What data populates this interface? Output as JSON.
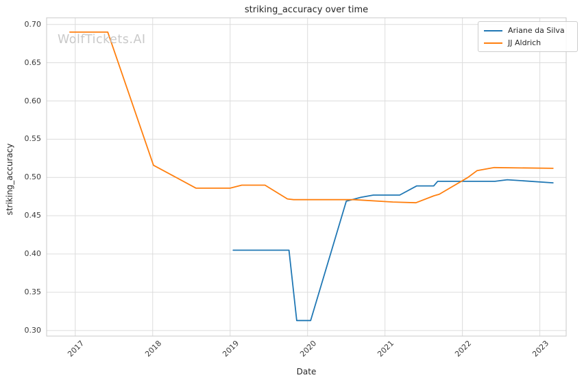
{
  "watermark": {
    "text": "WolfTickets.AI",
    "color": "#c9c9c9"
  },
  "style": {
    "background": "#ffffff",
    "grid_color": "#dcdcdc",
    "spine_color": "#c8c8c8",
    "text_color": "#262626",
    "tick_color": "#3a3a3a"
  },
  "chart_data": {
    "type": "line",
    "title": "striking_accuracy over time",
    "xlabel": "Date",
    "ylabel": "striking_accuracy",
    "grid": true,
    "legend_position": "upper right",
    "xlim": [
      2016.63,
      2023.34
    ],
    "ylim": [
      0.2927,
      0.7087
    ],
    "x_ticks": [
      2017,
      2018,
      2019,
      2020,
      2021,
      2022,
      2023
    ],
    "y_ticks": [
      0.3,
      0.35,
      0.4,
      0.45,
      0.5,
      0.55,
      0.6,
      0.65,
      0.7
    ],
    "series": [
      {
        "name": "Ariane da Silva",
        "color": "#1f77b4",
        "points": [
          [
            2019.04,
            0.405
          ],
          [
            2019.76,
            0.405
          ],
          [
            2019.86,
            0.313
          ],
          [
            2020.04,
            0.313
          ],
          [
            2020.5,
            0.469
          ],
          [
            2020.69,
            0.474
          ],
          [
            2020.85,
            0.477
          ],
          [
            2021.19,
            0.477
          ],
          [
            2021.41,
            0.489
          ],
          [
            2021.63,
            0.489
          ],
          [
            2021.68,
            0.495
          ],
          [
            2022.42,
            0.495
          ],
          [
            2022.58,
            0.497
          ],
          [
            2023.17,
            0.493
          ]
        ]
      },
      {
        "name": "JJ Aldrich",
        "color": "#ff7f0e",
        "points": [
          [
            2016.93,
            0.69
          ],
          [
            2017.42,
            0.69
          ],
          [
            2018.01,
            0.516
          ],
          [
            2018.56,
            0.486
          ],
          [
            2019.0,
            0.486
          ],
          [
            2019.15,
            0.49
          ],
          [
            2019.45,
            0.49
          ],
          [
            2019.74,
            0.472
          ],
          [
            2019.82,
            0.471
          ],
          [
            2020.6,
            0.471
          ],
          [
            2021.1,
            0.468
          ],
          [
            2021.4,
            0.467
          ],
          [
            2021.63,
            0.476
          ],
          [
            2021.7,
            0.478
          ],
          [
            2022.07,
            0.5
          ],
          [
            2022.19,
            0.509
          ],
          [
            2022.41,
            0.513
          ],
          [
            2023.17,
            0.512
          ]
        ]
      }
    ]
  }
}
